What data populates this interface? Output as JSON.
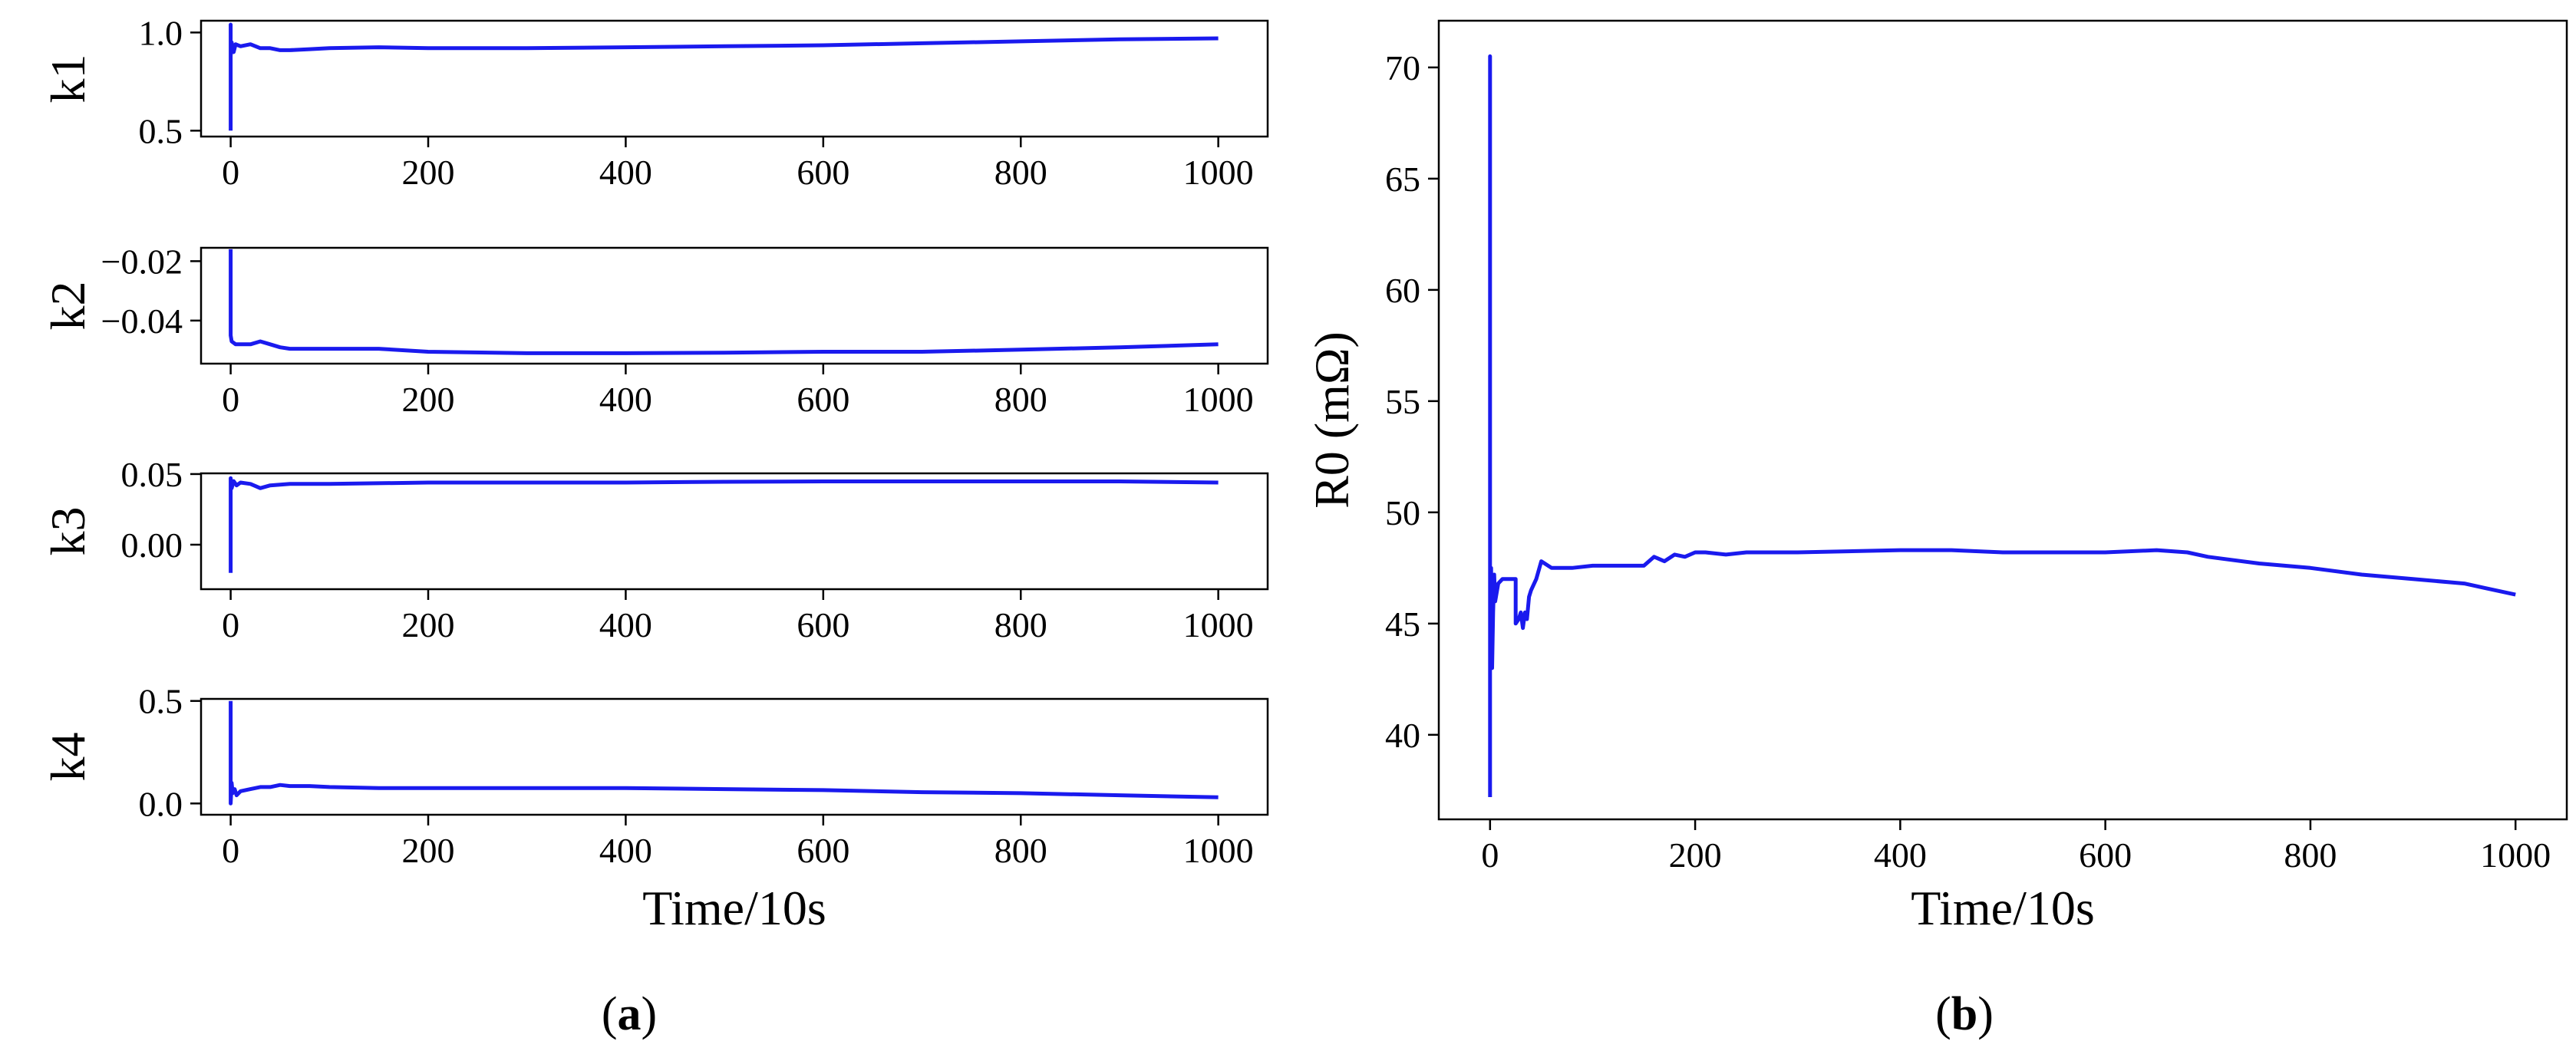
{
  "figure": {
    "panel_a_label": "a",
    "panel_b_label": "b"
  },
  "chart_data": [
    {
      "type": "line",
      "panel": "a",
      "ylabel": "k1",
      "xlabel": "",
      "xlim": [
        -30,
        1050
      ],
      "ylim": [
        0.47,
        1.06
      ],
      "xticks": [
        0,
        200,
        400,
        600,
        800,
        1000
      ],
      "yticks": [
        0.5,
        1.0
      ],
      "ytick_labels": [
        "0.5",
        "1.0"
      ],
      "color": "#1a1aee",
      "grid": false,
      "x": [
        0,
        0,
        0,
        1,
        3,
        5,
        10,
        20,
        30,
        40,
        50,
        60,
        80,
        100,
        150,
        200,
        300,
        400,
        500,
        600,
        700,
        800,
        900,
        1000
      ],
      "y": [
        0.5,
        1.04,
        0.88,
        0.95,
        0.9,
        0.94,
        0.93,
        0.94,
        0.92,
        0.92,
        0.91,
        0.91,
        0.915,
        0.92,
        0.925,
        0.92,
        0.92,
        0.925,
        0.93,
        0.935,
        0.945,
        0.955,
        0.965,
        0.97
      ]
    },
    {
      "type": "line",
      "panel": "a",
      "ylabel": "k2",
      "xlabel": "",
      "xlim": [
        -30,
        1050
      ],
      "ylim": [
        -0.0545,
        -0.0155
      ],
      "xticks": [
        0,
        200,
        400,
        600,
        800,
        1000
      ],
      "yticks": [
        -0.02,
        -0.04
      ],
      "ytick_labels": [
        "−0.02",
        "−0.04"
      ],
      "color": "#1a1aee",
      "grid": false,
      "x": [
        0,
        0,
        1,
        3,
        5,
        8,
        12,
        20,
        30,
        40,
        50,
        60,
        100,
        150,
        200,
        300,
        400,
        500,
        600,
        700,
        800,
        900,
        1000
      ],
      "y": [
        -0.016,
        -0.045,
        -0.047,
        -0.0475,
        -0.048,
        -0.048,
        -0.048,
        -0.048,
        -0.047,
        -0.048,
        -0.049,
        -0.0495,
        -0.0495,
        -0.0495,
        -0.0505,
        -0.051,
        -0.051,
        -0.0508,
        -0.0505,
        -0.0505,
        -0.0498,
        -0.049,
        -0.048
      ]
    },
    {
      "type": "line",
      "panel": "a",
      "ylabel": "k3",
      "xlabel": "",
      "xlim": [
        -30,
        1050
      ],
      "ylim": [
        -0.0315,
        0.0505
      ],
      "xticks": [
        0,
        200,
        400,
        600,
        800,
        1000
      ],
      "yticks": [
        0.05,
        0.0
      ],
      "ytick_labels": [
        "0.05",
        "0.00"
      ],
      "color": "#1a1aee",
      "grid": false,
      "x": [
        0,
        0,
        1,
        3,
        6,
        10,
        20,
        30,
        40,
        60,
        100,
        200,
        300,
        400,
        500,
        600,
        700,
        800,
        900,
        1000
      ],
      "y": [
        -0.02,
        0.047,
        0.04,
        0.045,
        0.042,
        0.044,
        0.043,
        0.04,
        0.042,
        0.043,
        0.043,
        0.044,
        0.044,
        0.044,
        0.0445,
        0.0448,
        0.0448,
        0.0448,
        0.0448,
        0.044
      ]
    },
    {
      "type": "line",
      "panel": "a",
      "ylabel": "k4",
      "xlabel": "Time/10s",
      "xlim": [
        -30,
        1050
      ],
      "ylim": [
        -0.055,
        0.51
      ],
      "xticks": [
        0,
        200,
        400,
        600,
        800,
        1000
      ],
      "yticks": [
        0.5,
        0.0
      ],
      "ytick_labels": [
        "0.5",
        "0.0"
      ],
      "color": "#1a1aee",
      "grid": false,
      "x": [
        0,
        0,
        1,
        2,
        4,
        6,
        10,
        20,
        30,
        40,
        50,
        60,
        80,
        100,
        150,
        200,
        300,
        400,
        500,
        600,
        700,
        800,
        900,
        1000
      ],
      "y": [
        0.5,
        0.0,
        0.1,
        0.05,
        0.07,
        0.04,
        0.06,
        0.07,
        0.08,
        0.08,
        0.09,
        0.085,
        0.085,
        0.08,
        0.075,
        0.075,
        0.075,
        0.075,
        0.07,
        0.065,
        0.055,
        0.05,
        0.04,
        0.03
      ]
    },
    {
      "type": "line",
      "panel": "b",
      "ylabel": "R0 (mΩ)",
      "xlabel": "Time/10s",
      "xlim": [
        -50,
        1050
      ],
      "ylim": [
        36.2,
        72.1
      ],
      "xticks": [
        0,
        200,
        400,
        600,
        800,
        1000
      ],
      "yticks": [
        40,
        45,
        50,
        55,
        60,
        65,
        70
      ],
      "ytick_labels": [
        "40",
        "45",
        "50",
        "55",
        "60",
        "65",
        "70"
      ],
      "color": "#1a1aee",
      "grid": false,
      "x": [
        0,
        0,
        0,
        1,
        2,
        3,
        4,
        5,
        8,
        12,
        25,
        25,
        28,
        30,
        32,
        34,
        36,
        38,
        40,
        45,
        50,
        60,
        80,
        100,
        150,
        160,
        170,
        180,
        190,
        200,
        210,
        230,
        250,
        300,
        400,
        450,
        500,
        600,
        650,
        680,
        700,
        750,
        800,
        850,
        900,
        950,
        970,
        1000
      ],
      "y": [
        37.2,
        70.5,
        43,
        47.5,
        43,
        45.5,
        47.2,
        46,
        46.8,
        47,
        47,
        45,
        45.2,
        45.5,
        44.8,
        45.5,
        45.2,
        46.2,
        46.5,
        47,
        47.8,
        47.5,
        47.5,
        47.6,
        47.6,
        48,
        47.8,
        48.1,
        48,
        48.2,
        48.2,
        48.1,
        48.2,
        48.2,
        48.3,
        48.3,
        48.2,
        48.2,
        48.3,
        48.2,
        48,
        47.7,
        47.5,
        47.2,
        47,
        46.8,
        46.6,
        46.3
      ]
    }
  ]
}
